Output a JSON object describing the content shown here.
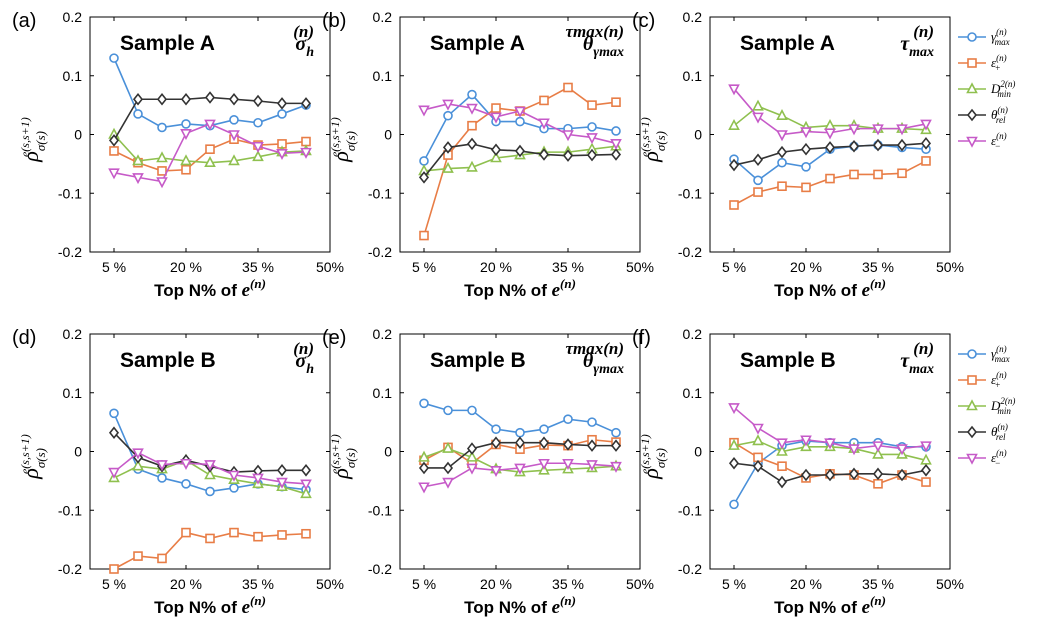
{
  "chart_data": [
    {
      "type": "line",
      "panel_label": "(a)",
      "title": "Sample A",
      "variable": {
        "base": "σ",
        "sub": "h",
        "sup": "(n)"
      },
      "xlabel": "Top N% of e(n)",
      "ylabel": "ρσ(s)e(s,s+1)",
      "x": [
        5,
        10,
        15,
        20,
        25,
        30,
        35,
        40,
        45
      ],
      "xticks": [
        5,
        20,
        35,
        50
      ],
      "xtick_labels": [
        "5 %",
        "20 %",
        "35 %",
        "50%"
      ],
      "ylim": [
        -0.2,
        0.2
      ],
      "yticks": [
        -0.2,
        -0.1,
        0,
        0.1,
        0.2
      ],
      "ytick_labels": [
        "-0.2",
        "-0.1",
        "0",
        "0.1",
        "0.2"
      ],
      "series": [
        {
          "key": "gamma",
          "values": [
            0.13,
            0.035,
            0.012,
            0.018,
            0.015,
            0.025,
            0.02,
            0.035,
            0.05
          ]
        },
        {
          "key": "eplus",
          "values": [
            -0.028,
            -0.048,
            -0.062,
            -0.06,
            -0.025,
            -0.008,
            -0.018,
            -0.016,
            -0.012
          ]
        },
        {
          "key": "dmin",
          "values": [
            0.0,
            -0.045,
            -0.04,
            -0.045,
            -0.048,
            -0.045,
            -0.038,
            -0.03,
            -0.028
          ]
        },
        {
          "key": "theta",
          "values": [
            -0.01,
            0.06,
            0.06,
            0.06,
            0.063,
            0.06,
            0.057,
            0.053,
            0.053
          ]
        },
        {
          "key": "eminus",
          "values": [
            -0.065,
            -0.073,
            -0.08,
            0.002,
            0.018,
            0.0,
            -0.02,
            -0.032,
            -0.03
          ]
        }
      ]
    },
    {
      "type": "line",
      "panel_label": "(b)",
      "title": "Sample A",
      "variable": {
        "base": "θ",
        "sub": "γmax",
        "sup": "τmax(n)"
      },
      "xlabel": "Top N% of e(n)",
      "ylabel": "ρσ(s)e(s,s+1)",
      "x": [
        5,
        10,
        15,
        20,
        25,
        30,
        35,
        40,
        45
      ],
      "xticks": [
        5,
        20,
        35,
        50
      ],
      "xtick_labels": [
        "5 %",
        "20 %",
        "35 %",
        "50%"
      ],
      "ylim": [
        -0.2,
        0.2
      ],
      "yticks": [
        -0.2,
        -0.1,
        0,
        0.1,
        0.2
      ],
      "ytick_labels": [
        "-0.2",
        "-0.1",
        "0",
        "0.1",
        "0.2"
      ],
      "series": [
        {
          "key": "gamma",
          "values": [
            -0.045,
            0.032,
            0.068,
            0.022,
            0.022,
            0.01,
            0.01,
            0.013,
            0.006
          ]
        },
        {
          "key": "eplus",
          "values": [
            -0.172,
            -0.035,
            0.015,
            0.045,
            0.04,
            0.058,
            0.08,
            0.05,
            0.055
          ]
        },
        {
          "key": "dmin",
          "values": [
            -0.062,
            -0.058,
            -0.056,
            -0.04,
            -0.035,
            -0.03,
            -0.03,
            -0.025,
            -0.02
          ]
        },
        {
          "key": "theta",
          "values": [
            -0.073,
            -0.022,
            -0.016,
            -0.026,
            -0.028,
            -0.034,
            -0.036,
            -0.035,
            -0.034
          ]
        },
        {
          "key": "eminus",
          "values": [
            0.042,
            0.052,
            0.045,
            0.03,
            0.04,
            0.02,
            0.0,
            -0.005,
            -0.015
          ]
        }
      ]
    },
    {
      "type": "line",
      "panel_label": "(c)",
      "title": "Sample A",
      "variable": {
        "base": "τ",
        "sub": "max",
        "sup": "(n)"
      },
      "xlabel": "Top N% of e(n)",
      "ylabel": "ρσ(s)e(s,s+1)",
      "x": [
        5,
        10,
        15,
        20,
        25,
        30,
        35,
        40,
        45
      ],
      "xticks": [
        5,
        20,
        35,
        50
      ],
      "xtick_labels": [
        "5 %",
        "20 %",
        "35 %",
        "50%"
      ],
      "ylim": [
        -0.2,
        0.2
      ],
      "yticks": [
        -0.2,
        -0.1,
        0,
        0.1,
        0.2
      ],
      "ytick_labels": [
        "-0.2",
        "-0.1",
        "0",
        "0.1",
        "0.2"
      ],
      "series": [
        {
          "key": "gamma",
          "values": [
            -0.042,
            -0.078,
            -0.048,
            -0.055,
            -0.025,
            -0.02,
            -0.018,
            -0.022,
            -0.025
          ]
        },
        {
          "key": "eplus",
          "values": [
            -0.12,
            -0.098,
            -0.088,
            -0.09,
            -0.075,
            -0.068,
            -0.068,
            -0.066,
            -0.045
          ]
        },
        {
          "key": "dmin",
          "values": [
            0.015,
            0.048,
            0.032,
            0.012,
            0.015,
            0.015,
            0.01,
            0.01,
            0.008
          ]
        },
        {
          "key": "theta",
          "values": [
            -0.052,
            -0.043,
            -0.03,
            -0.025,
            -0.022,
            -0.02,
            -0.018,
            -0.018,
            -0.015
          ]
        },
        {
          "key": "eminus",
          "values": [
            0.078,
            0.03,
            0.0,
            0.005,
            0.003,
            0.01,
            0.01,
            0.01,
            0.018
          ]
        }
      ]
    },
    {
      "type": "line",
      "panel_label": "(d)",
      "title": "Sample B",
      "variable": {
        "base": "σ",
        "sub": "h",
        "sup": "(n)"
      },
      "xlabel": "Top N% of e(n)",
      "ylabel": "ρσ(s)e(s,s+1)",
      "x": [
        5,
        10,
        15,
        20,
        25,
        30,
        35,
        40,
        45
      ],
      "xticks": [
        5,
        20,
        35,
        50
      ],
      "xtick_labels": [
        "5 %",
        "20 %",
        "35 %",
        "50%"
      ],
      "ylim": [
        -0.2,
        0.2
      ],
      "yticks": [
        -0.2,
        -0.1,
        0,
        0.1,
        0.2
      ],
      "ytick_labels": [
        "-0.2",
        "-0.1",
        "0",
        "0.1",
        "0.2"
      ],
      "series": [
        {
          "key": "gamma",
          "values": [
            0.065,
            -0.03,
            -0.045,
            -0.055,
            -0.068,
            -0.062,
            -0.055,
            -0.06,
            -0.065
          ]
        },
        {
          "key": "eplus",
          "values": [
            -0.2,
            -0.178,
            -0.182,
            -0.138,
            -0.148,
            -0.138,
            -0.145,
            -0.142,
            -0.14
          ]
        },
        {
          "key": "dmin",
          "values": [
            -0.045,
            -0.025,
            -0.03,
            -0.015,
            -0.04,
            -0.048,
            -0.055,
            -0.06,
            -0.072
          ]
        },
        {
          "key": "theta",
          "values": [
            0.032,
            -0.01,
            -0.025,
            -0.015,
            -0.025,
            -0.035,
            -0.033,
            -0.032,
            -0.032
          ]
        },
        {
          "key": "eminus",
          "values": [
            -0.035,
            -0.002,
            -0.022,
            -0.02,
            -0.022,
            -0.04,
            -0.045,
            -0.052,
            -0.055
          ]
        }
      ]
    },
    {
      "type": "line",
      "panel_label": "(e)",
      "title": "Sample B",
      "variable": {
        "base": "θ",
        "sub": "γmax",
        "sup": "τmax(n)"
      },
      "xlabel": "Top N% of e(n)",
      "ylabel": "ρσ(s)e(s,s+1)",
      "x": [
        5,
        10,
        15,
        20,
        25,
        30,
        35,
        40,
        45
      ],
      "xticks": [
        5,
        20,
        35,
        50
      ],
      "xtick_labels": [
        "5 %",
        "20 %",
        "35 %",
        "50%"
      ],
      "ylim": [
        -0.2,
        0.2
      ],
      "yticks": [
        -0.2,
        -0.1,
        0,
        0.1,
        0.2
      ],
      "ytick_labels": [
        "-0.2",
        "-0.1",
        "0",
        "0.1",
        "0.2"
      ],
      "series": [
        {
          "key": "gamma",
          "values": [
            0.082,
            0.07,
            0.07,
            0.038,
            0.032,
            0.038,
            0.055,
            0.05,
            0.032
          ]
        },
        {
          "key": "eplus",
          "values": [
            -0.015,
            0.007,
            -0.02,
            0.012,
            0.004,
            0.011,
            0.01,
            0.02,
            0.016
          ]
        },
        {
          "key": "dmin",
          "values": [
            -0.01,
            0.005,
            -0.01,
            -0.03,
            -0.035,
            -0.032,
            -0.03,
            -0.028,
            -0.025
          ]
        },
        {
          "key": "theta",
          "values": [
            -0.028,
            -0.028,
            0.005,
            0.015,
            0.015,
            0.015,
            0.012,
            0.01,
            0.01
          ]
        },
        {
          "key": "eminus",
          "values": [
            -0.06,
            -0.052,
            -0.028,
            -0.032,
            -0.028,
            -0.02,
            -0.02,
            -0.022,
            -0.025
          ]
        }
      ]
    },
    {
      "type": "line",
      "panel_label": "(f)",
      "title": "Sample B",
      "variable": {
        "base": "τ",
        "sub": "max",
        "sup": "(n)"
      },
      "xlabel": "Top N% of e(n)",
      "ylabel": "ρσ(s)e(s,s+1)",
      "x": [
        5,
        10,
        15,
        20,
        25,
        30,
        35,
        40,
        45
      ],
      "xticks": [
        5,
        20,
        35,
        50
      ],
      "xtick_labels": [
        "5 %",
        "20 %",
        "35 %",
        "50%"
      ],
      "ylim": [
        -0.2,
        0.2
      ],
      "yticks": [
        -0.2,
        -0.1,
        0,
        0.1,
        0.2
      ],
      "ytick_labels": [
        "-0.2",
        "-0.1",
        "0",
        "0.1",
        "0.2"
      ],
      "series": [
        {
          "key": "gamma",
          "values": [
            -0.09,
            -0.02,
            0.01,
            0.018,
            0.015,
            0.015,
            0.015,
            0.008,
            0.008
          ]
        },
        {
          "key": "eplus",
          "values": [
            0.015,
            -0.01,
            -0.025,
            -0.045,
            -0.038,
            -0.04,
            -0.055,
            -0.04,
            -0.052
          ]
        },
        {
          "key": "dmin",
          "values": [
            0.01,
            0.018,
            0.0,
            0.008,
            0.008,
            0.005,
            -0.005,
            -0.005,
            -0.015
          ]
        },
        {
          "key": "theta",
          "values": [
            -0.02,
            -0.025,
            -0.052,
            -0.04,
            -0.04,
            -0.038,
            -0.038,
            -0.04,
            -0.032
          ]
        },
        {
          "key": "eminus",
          "values": [
            0.075,
            0.04,
            0.015,
            0.02,
            0.015,
            0.005,
            0.01,
            0.005,
            0.01
          ]
        }
      ]
    }
  ],
  "series_styles": [
    {
      "key": "gamma",
      "color": "#4a90d9",
      "marker": "circle",
      "label_base": "γ",
      "label_sub": "max",
      "label_sup": "(n)"
    },
    {
      "key": "eplus",
      "color": "#e87d46",
      "marker": "square",
      "label_base": "ε",
      "label_sub": "+",
      "label_sup": "(n)"
    },
    {
      "key": "dmin",
      "color": "#8fc04f",
      "marker": "triangle-up",
      "label_base": "D",
      "label_sub": "min",
      "label_sup": "2(n)"
    },
    {
      "key": "theta",
      "color": "#333333",
      "marker": "diamond",
      "label_base": "θ",
      "label_sub": "rel",
      "label_sup": "(n)"
    },
    {
      "key": "eminus",
      "color": "#c65ac8",
      "marker": "triangle-down",
      "label_base": "ε",
      "label_sub": "−",
      "label_sup": "(n)"
    }
  ]
}
